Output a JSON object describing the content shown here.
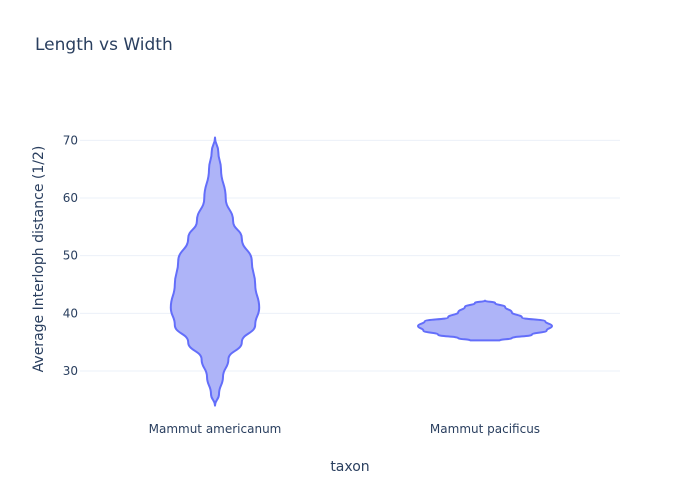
{
  "chart_data": {
    "type": "violin",
    "title": "Length vs Width",
    "xlabel": "taxon",
    "ylabel": "Average Interloph distance (1/2)",
    "categories": [
      "Mammut americanum",
      "Mammut pacificus"
    ],
    "ylim": [
      21.5,
      77
    ],
    "yticks": [
      30,
      40,
      50,
      60,
      70
    ],
    "grid": true,
    "legend": "none",
    "fill_color": "#aab0f8",
    "line_color": "#636efa",
    "series": [
      {
        "category": "Mammut americanum",
        "min": 24,
        "max": 70.5,
        "density_profile": [
          {
            "y": 24,
            "w": 0.0
          },
          {
            "y": 26,
            "w": 0.06
          },
          {
            "y": 29,
            "w": 0.12
          },
          {
            "y": 32,
            "w": 0.2
          },
          {
            "y": 35,
            "w": 0.4
          },
          {
            "y": 38,
            "w": 0.6
          },
          {
            "y": 41,
            "w": 0.66
          },
          {
            "y": 45,
            "w": 0.6
          },
          {
            "y": 49,
            "w": 0.55
          },
          {
            "y": 53,
            "w": 0.4
          },
          {
            "y": 56,
            "w": 0.27
          },
          {
            "y": 60,
            "w": 0.16
          },
          {
            "y": 65,
            "w": 0.09
          },
          {
            "y": 68,
            "w": 0.05
          },
          {
            "y": 70.5,
            "w": 0.0
          }
        ]
      },
      {
        "category": "Mammut pacificus",
        "min": 35.3,
        "max": 42.2,
        "density_profile": [
          {
            "y": 35.3,
            "w": 0.22
          },
          {
            "y": 35.7,
            "w": 0.4
          },
          {
            "y": 36.3,
            "w": 0.7
          },
          {
            "y": 37.0,
            "w": 0.92
          },
          {
            "y": 37.8,
            "w": 1.0
          },
          {
            "y": 38.6,
            "w": 0.9
          },
          {
            "y": 39.3,
            "w": 0.55
          },
          {
            "y": 40.2,
            "w": 0.4
          },
          {
            "y": 41.1,
            "w": 0.3
          },
          {
            "y": 41.8,
            "w": 0.15
          },
          {
            "y": 42.2,
            "w": 0.0
          }
        ]
      }
    ]
  }
}
